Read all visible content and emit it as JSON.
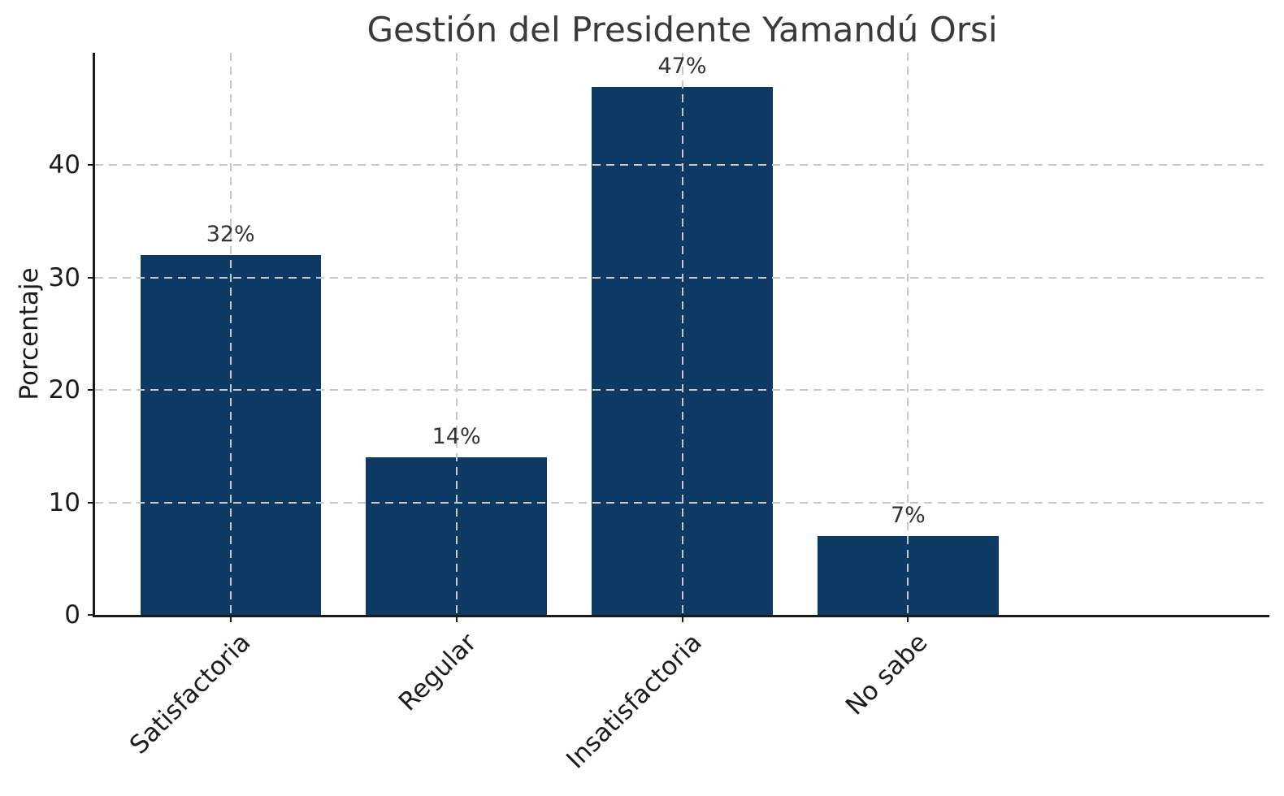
{
  "chart_data": {
    "type": "bar",
    "title": "Gestión del Presidente Yamandú Orsi",
    "ylabel": "Porcentaje",
    "xlabel": "",
    "categories": [
      "Satisfactoria",
      "Regular",
      "Insatisfactoria",
      "No sabe"
    ],
    "values": [
      32,
      14,
      47,
      7
    ],
    "bar_labels": [
      "32%",
      "14%",
      "47%",
      "7%"
    ],
    "ylim": [
      0,
      50
    ],
    "yticks": [
      0,
      10,
      20,
      30,
      40
    ],
    "grid": {
      "style": "dashed",
      "axes": "both",
      "color": "#c8c8c8",
      "above_bars": true
    },
    "bar_color": "#0c3a64",
    "spine_color": "#1a1a1a",
    "legend_position": "none"
  }
}
